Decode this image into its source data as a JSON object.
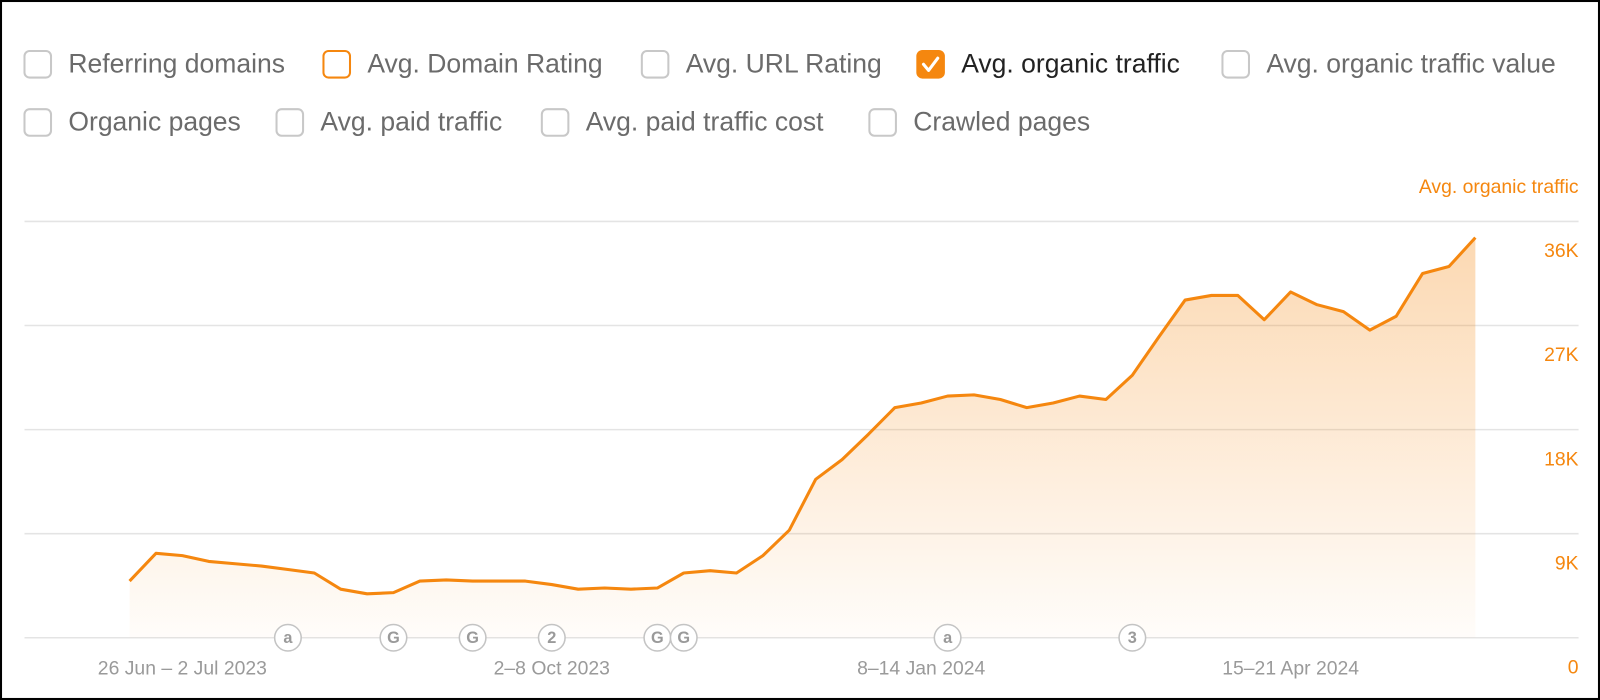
{
  "toggles": [
    [
      {
        "label": "Referring domains",
        "checked": false
      },
      {
        "label": "Avg. Domain Rating",
        "checked": false,
        "color": "#f5870f"
      },
      {
        "label": "Avg. URL Rating",
        "checked": false
      },
      {
        "label": "Avg. organic traffic",
        "checked": true,
        "color": "#f5870f"
      },
      {
        "label": "Avg. organic traffic value",
        "checked": false
      }
    ],
    [
      {
        "label": "Organic pages",
        "checked": false
      },
      {
        "label": "Avg. paid traffic",
        "checked": false
      },
      {
        "label": "Avg. paid traffic cost",
        "checked": false
      },
      {
        "label": "Crawled pages",
        "checked": false
      }
    ]
  ],
  "chart_data": {
    "type": "area",
    "categories": [
      null,
      null,
      "26 Jun – 2 Jul 2023",
      null,
      null,
      null,
      null,
      null,
      null,
      null,
      null,
      null,
      null,
      null,
      null,
      null,
      "2–8 Oct 2023",
      null,
      null,
      null,
      null,
      null,
      null,
      null,
      null,
      null,
      null,
      null,
      null,
      null,
      "8–14 Jan 2024",
      null,
      null,
      null,
      null,
      null,
      null,
      null,
      null,
      null,
      null,
      null,
      null,
      null,
      "15–21 Apr 2024",
      null,
      null,
      null,
      null,
      null,
      null,
      null
    ],
    "series": [
      {
        "name": "Avg. organic traffic",
        "color": "#f5870f",
        "values": [
          4900,
          7300,
          7100,
          6600,
          6400,
          6200,
          5900,
          5600,
          4200,
          3800,
          3900,
          4900,
          5000,
          4900,
          4900,
          4900,
          4600,
          4200,
          4300,
          4200,
          4300,
          5600,
          5800,
          5600,
          7100,
          9300,
          13700,
          15400,
          17600,
          19900,
          20300,
          20900,
          21000,
          20600,
          19900,
          20300,
          20900,
          20600,
          22700,
          26000,
          29200,
          29600,
          29600,
          27500,
          29900,
          28800,
          28200,
          26600,
          27800,
          31500,
          32100,
          34600
        ]
      }
    ],
    "events": [
      {
        "week": 6,
        "label": "a"
      },
      {
        "week": 10,
        "label": "G"
      },
      {
        "week": 13,
        "label": "G"
      },
      {
        "week": 16,
        "label": "2"
      },
      {
        "week": 20,
        "label": "G"
      },
      {
        "week": 21,
        "label": "G"
      },
      {
        "week": 31,
        "label": "a"
      },
      {
        "week": 38,
        "label": "3"
      }
    ],
    "ylim": [
      0,
      36000
    ],
    "yticks": [
      0,
      {
        "value": 9000,
        "label": "9K"
      },
      {
        "value": 18000,
        "label": "18K"
      },
      {
        "value": 27000,
        "label": "27K"
      },
      {
        "value": 36000,
        "label": "36K"
      }
    ],
    "grid": true
  }
}
